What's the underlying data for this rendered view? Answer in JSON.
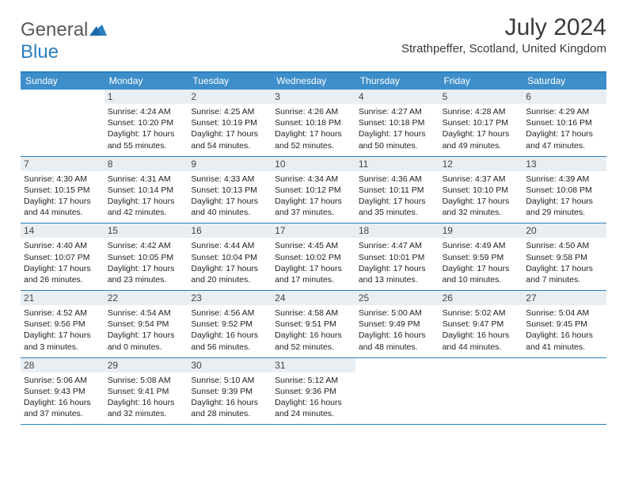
{
  "brand": {
    "text1": "General",
    "text2": "Blue"
  },
  "title": "July 2024",
  "location": "Strathpeffer, Scotland, United Kingdom",
  "colors": {
    "header_bar": "#3d8ec9",
    "divider": "#2a7fbf",
    "daynum_bg": "#e9eef3",
    "text": "#222222",
    "title_text": "#3a3a3a"
  },
  "weekdays": [
    "Sunday",
    "Monday",
    "Tuesday",
    "Wednesday",
    "Thursday",
    "Friday",
    "Saturday"
  ],
  "weeks": [
    [
      {
        "n": "",
        "lines": [
          "",
          "",
          "",
          ""
        ]
      },
      {
        "n": "1",
        "lines": [
          "Sunrise: 4:24 AM",
          "Sunset: 10:20 PM",
          "Daylight: 17 hours",
          "and 55 minutes."
        ]
      },
      {
        "n": "2",
        "lines": [
          "Sunrise: 4:25 AM",
          "Sunset: 10:19 PM",
          "Daylight: 17 hours",
          "and 54 minutes."
        ]
      },
      {
        "n": "3",
        "lines": [
          "Sunrise: 4:26 AM",
          "Sunset: 10:18 PM",
          "Daylight: 17 hours",
          "and 52 minutes."
        ]
      },
      {
        "n": "4",
        "lines": [
          "Sunrise: 4:27 AM",
          "Sunset: 10:18 PM",
          "Daylight: 17 hours",
          "and 50 minutes."
        ]
      },
      {
        "n": "5",
        "lines": [
          "Sunrise: 4:28 AM",
          "Sunset: 10:17 PM",
          "Daylight: 17 hours",
          "and 49 minutes."
        ]
      },
      {
        "n": "6",
        "lines": [
          "Sunrise: 4:29 AM",
          "Sunset: 10:16 PM",
          "Daylight: 17 hours",
          "and 47 minutes."
        ]
      }
    ],
    [
      {
        "n": "7",
        "lines": [
          "Sunrise: 4:30 AM",
          "Sunset: 10:15 PM",
          "Daylight: 17 hours",
          "and 44 minutes."
        ]
      },
      {
        "n": "8",
        "lines": [
          "Sunrise: 4:31 AM",
          "Sunset: 10:14 PM",
          "Daylight: 17 hours",
          "and 42 minutes."
        ]
      },
      {
        "n": "9",
        "lines": [
          "Sunrise: 4:33 AM",
          "Sunset: 10:13 PM",
          "Daylight: 17 hours",
          "and 40 minutes."
        ]
      },
      {
        "n": "10",
        "lines": [
          "Sunrise: 4:34 AM",
          "Sunset: 10:12 PM",
          "Daylight: 17 hours",
          "and 37 minutes."
        ]
      },
      {
        "n": "11",
        "lines": [
          "Sunrise: 4:36 AM",
          "Sunset: 10:11 PM",
          "Daylight: 17 hours",
          "and 35 minutes."
        ]
      },
      {
        "n": "12",
        "lines": [
          "Sunrise: 4:37 AM",
          "Sunset: 10:10 PM",
          "Daylight: 17 hours",
          "and 32 minutes."
        ]
      },
      {
        "n": "13",
        "lines": [
          "Sunrise: 4:39 AM",
          "Sunset: 10:08 PM",
          "Daylight: 17 hours",
          "and 29 minutes."
        ]
      }
    ],
    [
      {
        "n": "14",
        "lines": [
          "Sunrise: 4:40 AM",
          "Sunset: 10:07 PM",
          "Daylight: 17 hours",
          "and 26 minutes."
        ]
      },
      {
        "n": "15",
        "lines": [
          "Sunrise: 4:42 AM",
          "Sunset: 10:05 PM",
          "Daylight: 17 hours",
          "and 23 minutes."
        ]
      },
      {
        "n": "16",
        "lines": [
          "Sunrise: 4:44 AM",
          "Sunset: 10:04 PM",
          "Daylight: 17 hours",
          "and 20 minutes."
        ]
      },
      {
        "n": "17",
        "lines": [
          "Sunrise: 4:45 AM",
          "Sunset: 10:02 PM",
          "Daylight: 17 hours",
          "and 17 minutes."
        ]
      },
      {
        "n": "18",
        "lines": [
          "Sunrise: 4:47 AM",
          "Sunset: 10:01 PM",
          "Daylight: 17 hours",
          "and 13 minutes."
        ]
      },
      {
        "n": "19",
        "lines": [
          "Sunrise: 4:49 AM",
          "Sunset: 9:59 PM",
          "Daylight: 17 hours",
          "and 10 minutes."
        ]
      },
      {
        "n": "20",
        "lines": [
          "Sunrise: 4:50 AM",
          "Sunset: 9:58 PM",
          "Daylight: 17 hours",
          "and 7 minutes."
        ]
      }
    ],
    [
      {
        "n": "21",
        "lines": [
          "Sunrise: 4:52 AM",
          "Sunset: 9:56 PM",
          "Daylight: 17 hours",
          "and 3 minutes."
        ]
      },
      {
        "n": "22",
        "lines": [
          "Sunrise: 4:54 AM",
          "Sunset: 9:54 PM",
          "Daylight: 17 hours",
          "and 0 minutes."
        ]
      },
      {
        "n": "23",
        "lines": [
          "Sunrise: 4:56 AM",
          "Sunset: 9:52 PM",
          "Daylight: 16 hours",
          "and 56 minutes."
        ]
      },
      {
        "n": "24",
        "lines": [
          "Sunrise: 4:58 AM",
          "Sunset: 9:51 PM",
          "Daylight: 16 hours",
          "and 52 minutes."
        ]
      },
      {
        "n": "25",
        "lines": [
          "Sunrise: 5:00 AM",
          "Sunset: 9:49 PM",
          "Daylight: 16 hours",
          "and 48 minutes."
        ]
      },
      {
        "n": "26",
        "lines": [
          "Sunrise: 5:02 AM",
          "Sunset: 9:47 PM",
          "Daylight: 16 hours",
          "and 44 minutes."
        ]
      },
      {
        "n": "27",
        "lines": [
          "Sunrise: 5:04 AM",
          "Sunset: 9:45 PM",
          "Daylight: 16 hours",
          "and 41 minutes."
        ]
      }
    ],
    [
      {
        "n": "28",
        "lines": [
          "Sunrise: 5:06 AM",
          "Sunset: 9:43 PM",
          "Daylight: 16 hours",
          "and 37 minutes."
        ]
      },
      {
        "n": "29",
        "lines": [
          "Sunrise: 5:08 AM",
          "Sunset: 9:41 PM",
          "Daylight: 16 hours",
          "and 32 minutes."
        ]
      },
      {
        "n": "30",
        "lines": [
          "Sunrise: 5:10 AM",
          "Sunset: 9:39 PM",
          "Daylight: 16 hours",
          "and 28 minutes."
        ]
      },
      {
        "n": "31",
        "lines": [
          "Sunrise: 5:12 AM",
          "Sunset: 9:36 PM",
          "Daylight: 16 hours",
          "and 24 minutes."
        ]
      },
      {
        "n": "",
        "lines": [
          "",
          "",
          "",
          ""
        ]
      },
      {
        "n": "",
        "lines": [
          "",
          "",
          "",
          ""
        ]
      },
      {
        "n": "",
        "lines": [
          "",
          "",
          "",
          ""
        ]
      }
    ]
  ]
}
